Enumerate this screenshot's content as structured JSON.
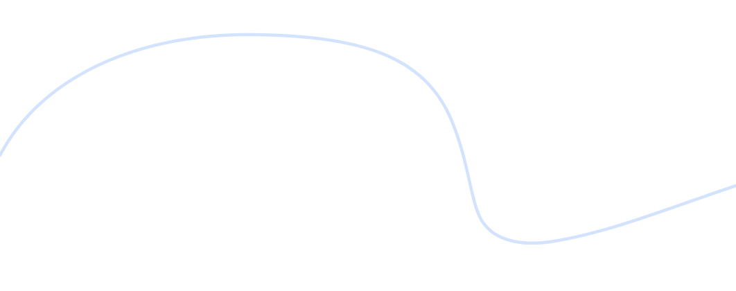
{
  "decoration": {
    "curve_color": "#d3e3fd",
    "background_color": "#ffffff"
  }
}
